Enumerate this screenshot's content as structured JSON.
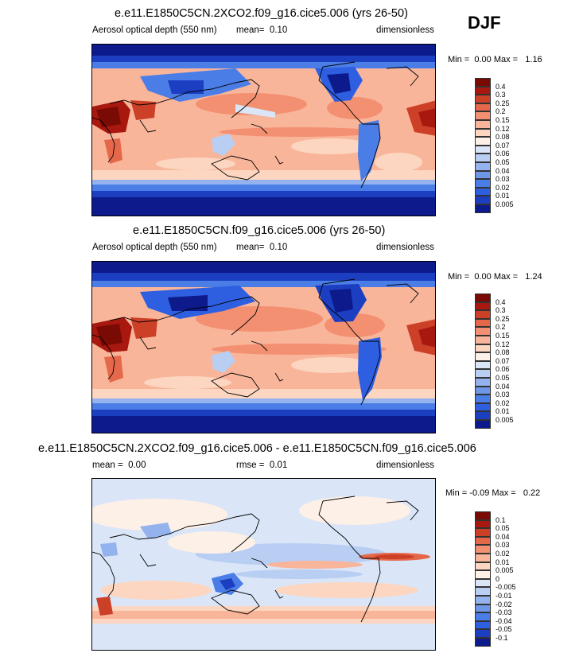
{
  "season": "DJF",
  "chart_data": [
    {
      "type": "heatmap",
      "title": "e.e11.E1850C5CN.2XCO2.f09_g16.cice5.006 (yrs 26-50)",
      "variable": "Aerosol optical depth (550 nm)",
      "stat_label": "mean=",
      "stat_value": "0.10",
      "units": "dimensionless",
      "min_label": "Min =",
      "min": "0.00",
      "max_label": "Max =",
      "max": "1.16",
      "levels": [
        "0.005",
        "0.01",
        "0.02",
        "0.03",
        "0.04",
        "0.05",
        "0.06",
        "0.07",
        "0.08",
        "0.12",
        "0.15",
        "0.2",
        "0.25",
        "0.3",
        "0.4"
      ],
      "colors": [
        "#0c1a8c",
        "#1c3fc2",
        "#2e5fe0",
        "#4a7de6",
        "#6e97e8",
        "#94b3ee",
        "#b9cef3",
        "#dae6f8",
        "#fdf0e6",
        "#fcd6c0",
        "#f9b59a",
        "#f39072",
        "#e5684a",
        "#cc4028",
        "#a8180f",
        "#7a0a04"
      ]
    },
    {
      "type": "heatmap",
      "title": "e.e11.E1850C5CN.f09_g16.cice5.006 (yrs 26-50)",
      "variable": "Aerosol optical depth (550 nm)",
      "stat_label": "mean=",
      "stat_value": "0.10",
      "units": "dimensionless",
      "min_label": "Min =",
      "min": "0.00",
      "max_label": "Max =",
      "max": "1.24",
      "levels": [
        "0.005",
        "0.01",
        "0.02",
        "0.03",
        "0.04",
        "0.05",
        "0.06",
        "0.07",
        "0.08",
        "0.12",
        "0.15",
        "0.2",
        "0.25",
        "0.3",
        "0.4"
      ],
      "colors": [
        "#0c1a8c",
        "#1c3fc2",
        "#2e5fe0",
        "#4a7de6",
        "#6e97e8",
        "#94b3ee",
        "#b9cef3",
        "#dae6f8",
        "#fdf0e6",
        "#fcd6c0",
        "#f9b59a",
        "#f39072",
        "#e5684a",
        "#cc4028",
        "#a8180f",
        "#7a0a04"
      ]
    },
    {
      "type": "heatmap",
      "title": "e.e11.E1850C5CN.2XCO2.f09_g16.cice5.006 - e.e11.E1850C5CN.f09_g16.cice5.006",
      "stat_label": "mean =",
      "stat_value": "0.00",
      "stat2_label": "rmse =",
      "stat2_value": "0.01",
      "units": "dimensionless",
      "min_label": "Min =",
      "min": "-0.09",
      "max_label": "Max =",
      "max": "0.22",
      "levels": [
        "-0.1",
        "-0.05",
        "-0.04",
        "-0.03",
        "-0.02",
        "-0.01",
        "-0.005",
        "0",
        "0.005",
        "0.01",
        "0.02",
        "0.03",
        "0.04",
        "0.05",
        "0.1"
      ],
      "colors": [
        "#0c1a8c",
        "#1c3fc2",
        "#2e5fe0",
        "#4a7de6",
        "#6e97e8",
        "#94b3ee",
        "#b9cef3",
        "#dae6f8",
        "#fdf0e6",
        "#fcd6c0",
        "#f9b59a",
        "#f39072",
        "#e5684a",
        "#cc4028",
        "#a8180f",
        "#7a0a04"
      ]
    }
  ]
}
